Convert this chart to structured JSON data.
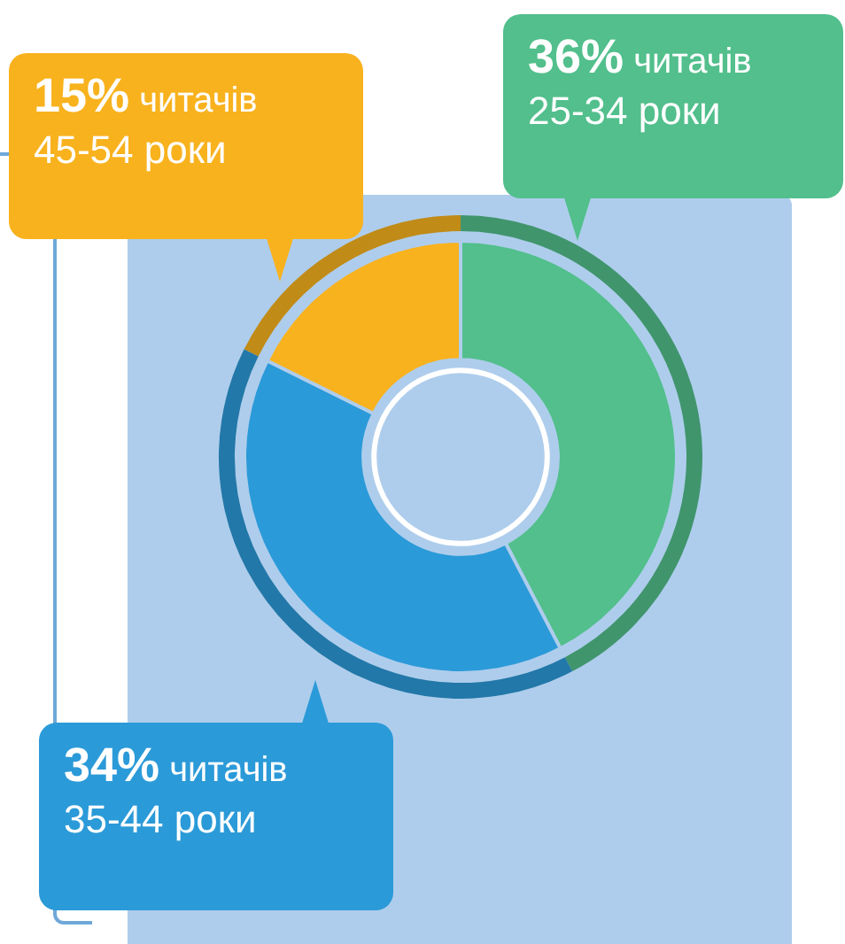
{
  "chart_data": {
    "type": "donut",
    "categories": [
      "25-34 роки",
      "35-44 роки",
      "45-54 роки"
    ],
    "values": [
      36,
      34,
      15
    ],
    "colors": [
      "#52bf8c",
      "#2b9ad8",
      "#f8b21e"
    ],
    "value_labels": [
      "36% читачів",
      "34% читачів",
      "15% читачів"
    ],
    "legend": false
  }
}
